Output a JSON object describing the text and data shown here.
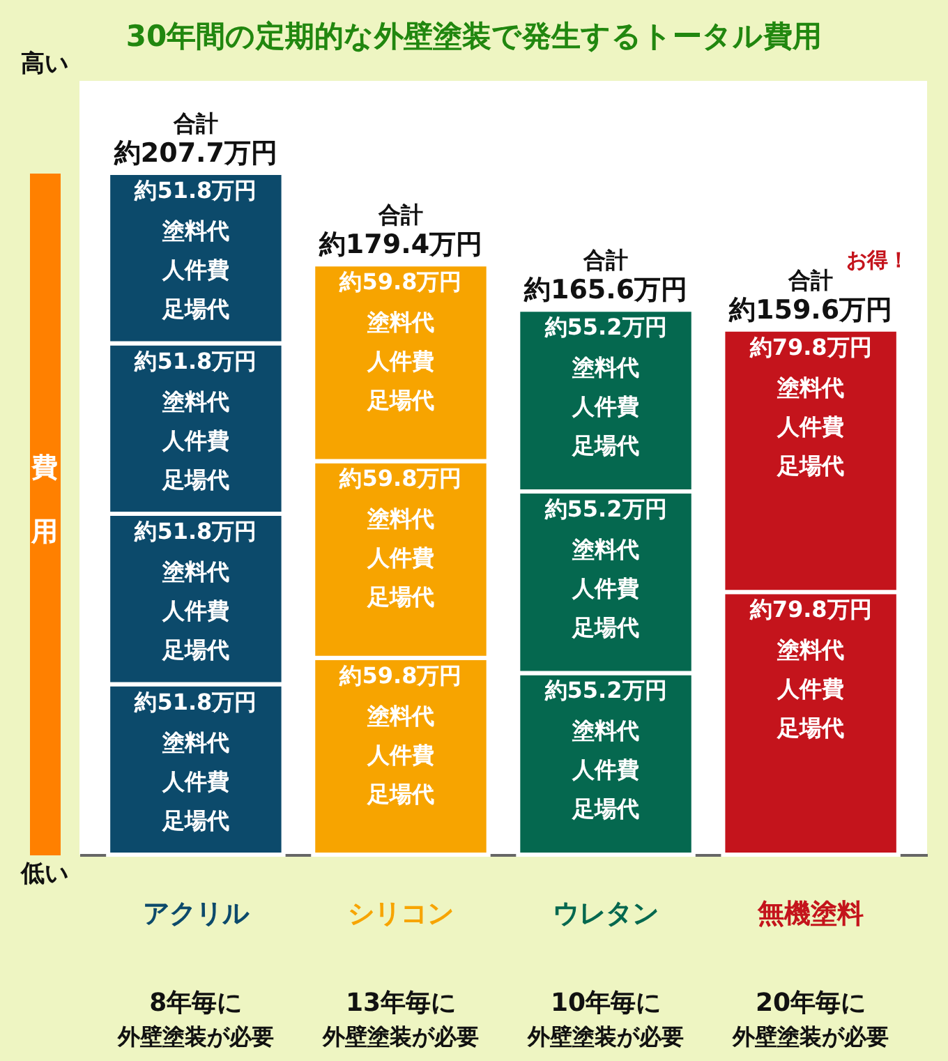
{
  "chart_data": {
    "type": "bar",
    "title": "30年間の定期的な外壁塗装で発生するトータル費用",
    "ylabel": "費用",
    "categories": [
      "アクリル",
      "シリコン",
      "ウレタン",
      "無機塗料"
    ],
    "stacked": true,
    "tick_labels": "x",
    "series": [
      {
        "colors": [
          "#0c4a6b",
          "#f7a400",
          "#05684f",
          "#c4141c"
        ],
        "values": [
          51.8,
          59.8,
          55.2,
          79.8
        ],
        "value_labels": [
          "約51.8万円",
          "約59.8万円",
          "約55.2万円",
          "約79.8万円"
        ]
      },
      {
        "colors": [
          "#0c4a6b",
          "#f7a400",
          "#05684f",
          "#c4141c"
        ],
        "values": [
          51.8,
          59.8,
          55.2,
          79.8
        ],
        "value_labels": [
          "約51.8万円",
          "約59.8万円",
          "約55.2万円",
          "約79.8万円"
        ]
      },
      {
        "colors": [
          "#0c4a6b",
          "#f7a400",
          "#05684f",
          null
        ],
        "values": [
          51.8,
          59.8,
          55.2,
          null
        ],
        "value_labels": [
          "約51.8万円",
          "約59.8万円",
          "約55.2万円",
          null
        ]
      },
      {
        "colors": [
          "#0c4a6b",
          null,
          null,
          null
        ],
        "values": [
          51.8,
          null,
          null,
          null
        ],
        "value_labels": [
          "約51.8万円",
          null,
          null,
          null
        ]
      }
    ],
    "totals": [
      "約207.7万円",
      "約179.4万円",
      "約165.6万円",
      "約159.6万円"
    ],
    "annotations": [
      "高い",
      "低い",
      "合計",
      "合計",
      "合計",
      "合計",
      "塗料代",
      "人件費",
      "足場代",
      "塗料代",
      "人件費",
      "足場代",
      "塗料代",
      "人件費",
      "足場代",
      "塗料代",
      "人件費",
      "足場代",
      "塗料代",
      "人件費",
      "足場代",
      "塗料代",
      "人件費",
      "足場代",
      "塗料代",
      "人件費",
      "足場代",
      "塗料代",
      "人件費",
      "足場代",
      "塗料代",
      "人件費",
      "足場代",
      "塗料代",
      "人件費",
      "足場代",
      "塗料代",
      "人件費",
      "足場代",
      "塗料代",
      "人件費",
      "足場代",
      "8年毎に",
      "外壁塗装が必要",
      "13年毎に",
      "外壁塗装が必要",
      "10年毎に",
      "外壁塗装が必要",
      "20年毎に",
      "外壁塗装が必要",
      "お得！"
    ]
  }
}
